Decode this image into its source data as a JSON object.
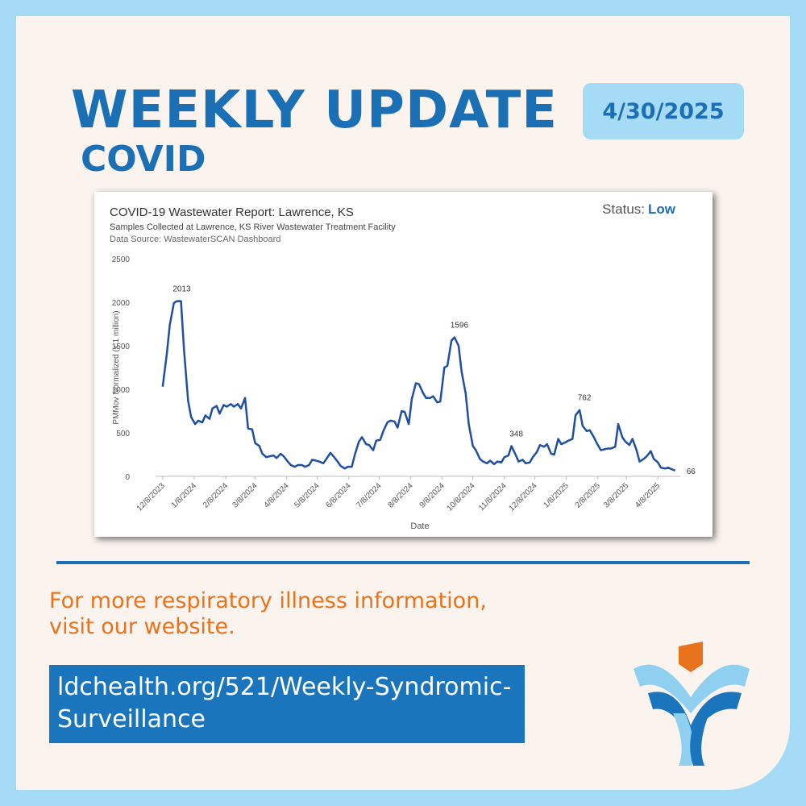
{
  "header": {
    "title": "WEEKLY UPDATE",
    "subtitle": "COVID",
    "date": "4/30/2025"
  },
  "chart_data": {
    "type": "line",
    "title": "COVID-19 Wastewater Report: Lawrence, KS",
    "subtitle": "Samples Collected at Lawrence, KS River Wastewater Treatment Facility",
    "source": "Data Source: WastewaterSCAN Dashboard",
    "status_label": "Status:",
    "status": "Low",
    "x_label": "Date",
    "y_label": "PMMov Normalized (x  1 million)",
    "xlim": [
      "12/1/2023",
      "4/30/2025"
    ],
    "xticks": [
      "12/8/2023",
      "1/8/2024",
      "2/8/2024",
      "3/8/2024",
      "4/8/2024",
      "5/8/2024",
      "6/8/2024",
      "7/8/2024",
      "8/8/2024",
      "9/8/2024",
      "10/8/2024",
      "11/8/2024",
      "12/8/2024",
      "1/8/2025",
      "2/8/2025",
      "3/8/2025",
      "4/8/2025"
    ],
    "ylim": [
      0,
      2500
    ],
    "yticks": [
      0,
      500,
      1000,
      1500,
      2000,
      2500
    ],
    "grid": false,
    "x": [
      "12/8/2023",
      "12/12/2023",
      "12/15/2023",
      "12/19/2023",
      "12/22/2023",
      "12/26/2023",
      "12/29/2023",
      "1/2/2024",
      "1/5/2024",
      "1/9/2024",
      "1/12/2024",
      "1/16/2024",
      "1/19/2024",
      "1/23/2024",
      "1/26/2024",
      "1/30/2024",
      "2/2/2024",
      "2/6/2024",
      "2/9/2024",
      "2/13/2024",
      "2/16/2024",
      "2/20/2024",
      "2/23/2024",
      "2/27/2024",
      "3/1/2024",
      "3/5/2024",
      "3/8/2024",
      "3/12/2024",
      "3/15/2024",
      "3/19/2024",
      "3/22/2024",
      "3/26/2024",
      "3/29/2024",
      "4/2/2024",
      "4/5/2024",
      "4/9/2024",
      "4/12/2024",
      "4/16/2024",
      "4/19/2024",
      "4/23/2024",
      "4/26/2024",
      "4/30/2024",
      "5/3/2024",
      "5/7/2024",
      "5/10/2024",
      "5/14/2024",
      "5/17/2024",
      "5/21/2024",
      "5/24/2024",
      "5/28/2024",
      "5/31/2024",
      "6/4/2024",
      "6/7/2024",
      "6/11/2024",
      "6/14/2024",
      "6/18/2024",
      "6/21/2024",
      "6/25/2024",
      "6/28/2024",
      "7/2/2024",
      "7/5/2024",
      "7/9/2024",
      "7/12/2024",
      "7/16/2024",
      "7/19/2024",
      "7/23/2024",
      "7/26/2024",
      "7/30/2024",
      "8/2/2024",
      "8/6/2024",
      "8/9/2024",
      "8/13/2024",
      "8/16/2024",
      "8/20/2024",
      "8/23/2024",
      "8/27/2024",
      "8/30/2024",
      "9/3/2024",
      "9/6/2024",
      "9/10/2024",
      "9/13/2024",
      "9/17/2024",
      "9/20/2024",
      "9/24/2024",
      "9/27/2024",
      "10/1/2024",
      "10/4/2024",
      "10/8/2024",
      "10/11/2024",
      "10/15/2024",
      "10/18/2024",
      "10/22/2024",
      "10/25/2024",
      "10/29/2024",
      "11/1/2024",
      "11/5/2024",
      "11/8/2024",
      "11/12/2024",
      "11/15/2024",
      "11/19/2024",
      "11/22/2024",
      "11/26/2024",
      "11/29/2024",
      "12/3/2024",
      "12/6/2024",
      "12/10/2024",
      "12/13/2024",
      "12/17/2024",
      "12/20/2024",
      "12/24/2024",
      "12/27/2024",
      "12/31/2024",
      "1/3/2025",
      "1/7/2025",
      "1/10/2025",
      "1/14/2025",
      "1/17/2025",
      "1/21/2025",
      "1/24/2025",
      "1/28/2025",
      "1/31/2025",
      "2/4/2025",
      "2/7/2025",
      "2/11/2025",
      "2/14/2025",
      "2/18/2025",
      "2/21/2025",
      "2/25/2025",
      "2/28/2025",
      "3/4/2025",
      "3/7/2025",
      "3/11/2025",
      "3/14/2025",
      "3/18/2025",
      "3/21/2025",
      "3/25/2025",
      "3/28/2025",
      "4/1/2025",
      "4/4/2025",
      "4/8/2025",
      "4/11/2025",
      "4/15/2025",
      "4/18/2025",
      "4/22/2025",
      "4/25/2025"
    ],
    "series": [
      {
        "color": "#1f4fa0",
        "values": [
          1030,
          1400,
          1740,
          1990,
          2013,
          2013,
          1450,
          870,
          680,
          600,
          640,
          620,
          700,
          660,
          780,
          810,
          720,
          820,
          800,
          830,
          800,
          830,
          780,
          900,
          550,
          540,
          380,
          350,
          260,
          220,
          230,
          240,
          210,
          260,
          230,
          170,
          130,
          110,
          130,
          130,
          110,
          130,
          190,
          180,
          170,
          150,
          200,
          270,
          230,
          170,
          120,
          90,
          110,
          110,
          250,
          400,
          450,
          370,
          360,
          300,
          410,
          420,
          520,
          620,
          640,
          630,
          560,
          750,
          740,
          600,
          890,
          1070,
          1060,
          960,
          900,
          900,
          920,
          850,
          860,
          1250,
          1270,
          1560,
          1596,
          1500,
          1200,
          950,
          600,
          350,
          300,
          200,
          170,
          150,
          180,
          140,
          170,
          160,
          220,
          240,
          348,
          250,
          170,
          190,
          150,
          160,
          220,
          280,
          360,
          340,
          370,
          260,
          250,
          430,
          370,
          390,
          410,
          430,
          700,
          762,
          580,
          520,
          530,
          450,
          380,
          300,
          310,
          320,
          320,
          340,
          600,
          450,
          400,
          360,
          430,
          300,
          170,
          200,
          230,
          290,
          200,
          160,
          100,
          90,
          100,
          80,
          66
        ],
        "value_labels": [
          null,
          null,
          null,
          null,
          "2013",
          null,
          null,
          null,
          null,
          null,
          null,
          null,
          null,
          null,
          null,
          null,
          null,
          null,
          null,
          null,
          null,
          null,
          null,
          null,
          null,
          null,
          null,
          null,
          null,
          null,
          null,
          null,
          null,
          null,
          null,
          null,
          null,
          null,
          null,
          null,
          null,
          null,
          null,
          null,
          null,
          null,
          null,
          null,
          null,
          null,
          null,
          null,
          null,
          null,
          null,
          null,
          null,
          null,
          null,
          null,
          null,
          null,
          null,
          null,
          null,
          null,
          null,
          null,
          null,
          null,
          null,
          null,
          null,
          null,
          null,
          null,
          null,
          null,
          null,
          null,
          null,
          null,
          "1596",
          null,
          null,
          null,
          null,
          null,
          null,
          null,
          null,
          null,
          null,
          null,
          null,
          null,
          null,
          null,
          "348",
          null,
          null,
          null,
          null,
          null,
          null,
          null,
          null,
          null,
          null,
          null,
          null,
          null,
          null,
          null,
          null,
          null,
          null,
          "762",
          null,
          null,
          null,
          null,
          null,
          null,
          null,
          null,
          null,
          null,
          null,
          null,
          null,
          null,
          null,
          null,
          null,
          null,
          null,
          null,
          null,
          null,
          null,
          null,
          null,
          null,
          "66"
        ]
      }
    ]
  },
  "footer": {
    "lines": [
      "For more respiratory illness information,",
      "visit our website."
    ],
    "link": "ldchealth.org/521/Weekly-Syndromic-Surveillance"
  }
}
